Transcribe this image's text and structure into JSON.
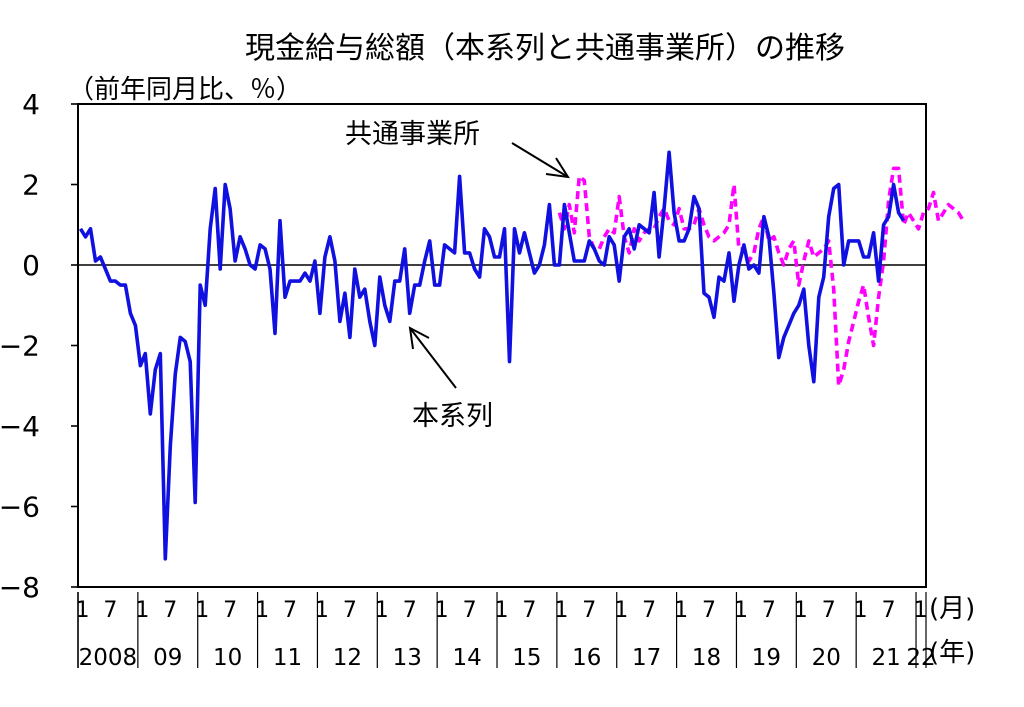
{
  "chart_data": {
    "type": "line",
    "title": "現金給与総額（本系列と共通事業所）の推移",
    "ylabel": "（前年同月比、％）",
    "x_unit_month": "(月)",
    "x_unit_year": "(年)",
    "ylim": [
      -8,
      4
    ],
    "y_ticks": [
      "4",
      "2",
      "0",
      "−2",
      "−4",
      "−6",
      "−8"
    ],
    "month_ticks": [
      "1",
      "7"
    ],
    "last_month_tick": "1",
    "years": [
      "2008",
      "09",
      "10",
      "11",
      "12",
      "13",
      "14",
      "15",
      "16",
      "17",
      "18",
      "19",
      "20",
      "21",
      "22"
    ],
    "annotations": {
      "series_hon": "本系列",
      "series_kyotsu": "共通事業所"
    },
    "series": [
      {
        "name": "本系列",
        "color": "#1010e0",
        "x_start": "2008-01",
        "values": [
          0.9,
          0.7,
          0.9,
          0.1,
          0.2,
          -0.1,
          -0.4,
          -0.4,
          -0.5,
          -0.5,
          -1.2,
          -1.5,
          -2.5,
          -2.2,
          -3.7,
          -2.6,
          -2.2,
          -7.3,
          -4.5,
          -2.7,
          -1.8,
          -1.9,
          -2.4,
          -5.9,
          -0.5,
          -1.0,
          0.9,
          1.9,
          -0.1,
          2.0,
          1.4,
          0.1,
          0.7,
          0.4,
          0.0,
          -0.1,
          0.5,
          0.4,
          -0.1,
          -1.7,
          1.1,
          -0.8,
          -0.4,
          -0.4,
          -0.4,
          -0.2,
          -0.4,
          0.1,
          -1.2,
          0.2,
          0.7,
          0.1,
          -1.4,
          -0.7,
          -1.8,
          -0.1,
          -0.8,
          -0.6,
          -1.4,
          -2.0,
          -0.3,
          -1.0,
          -1.4,
          -0.4,
          -0.4,
          0.4,
          -1.2,
          -0.5,
          -0.5,
          0.1,
          0.6,
          -0.5,
          -0.5,
          0.5,
          0.4,
          0.3,
          2.2,
          0.3,
          0.3,
          -0.1,
          -0.3,
          0.9,
          0.7,
          0.2,
          0.2,
          0.9,
          -2.4,
          0.9,
          0.3,
          0.8,
          0.3,
          -0.2,
          0.0,
          0.5,
          1.5,
          0.0,
          0.0,
          1.5,
          0.8,
          0.1,
          0.1,
          0.1,
          0.6,
          0.4,
          0.1,
          0.0,
          0.7,
          0.5,
          -0.4,
          0.7,
          0.9,
          0.4,
          1.0,
          0.9,
          0.8,
          1.8,
          0.2,
          1.4,
          2.8,
          1.3,
          0.6,
          0.6,
          0.9,
          1.7,
          1.4,
          -0.7,
          -0.8,
          -1.3,
          -0.3,
          -0.4,
          0.3,
          -0.9,
          0.0,
          0.5,
          -0.1,
          0.0,
          -0.2,
          1.2,
          0.7,
          -0.7,
          -2.3,
          -1.8,
          -1.5,
          -1.2,
          -1.0,
          -0.6,
          -2.0,
          -2.9,
          -0.8,
          -0.3,
          1.2,
          1.9,
          2.0,
          0.0,
          0.6,
          0.6,
          0.6,
          0.2,
          0.2,
          0.8,
          -0.4,
          1.0,
          1.2,
          2.0,
          1.3,
          1.1
        ]
      },
      {
        "name": "共通事業所",
        "color": "#ff00ff",
        "x_start": "2016-01",
        "values": [
          1.3,
          0.9,
          1.5,
          0.8,
          2.2,
          2.1,
          0.7,
          0.4,
          0.4,
          0.7,
          0.9,
          0.8,
          1.7,
          0.7,
          0.3,
          0.9,
          0.6,
          0.8,
          0.9,
          0.9,
          1.2,
          1.4,
          1.1,
          1.0,
          1.4,
          0.9,
          0.9,
          1.0,
          1.4,
          1.0,
          0.7,
          0.6,
          0.7,
          0.8,
          1.0,
          2.0,
          0.4,
          0.4,
          0.1,
          0.3,
          0.9,
          1.2,
          0.6,
          0.7,
          0.3,
          0.0,
          0.4,
          0.6,
          -0.5,
          0.1,
          0.6,
          0.2,
          0.3,
          0.4,
          0.6,
          -0.6,
          -3.0,
          -2.6,
          -1.9,
          -1.4,
          -0.9,
          -0.5,
          -1.3,
          -2.0,
          -0.8,
          0.1,
          1.6,
          2.4,
          2.4,
          1.0,
          1.3,
          1.1,
          0.9,
          1.3,
          1.4,
          1.8,
          1.1,
          1.3,
          1.5,
          1.4,
          1.3,
          1.1
        ]
      }
    ]
  }
}
